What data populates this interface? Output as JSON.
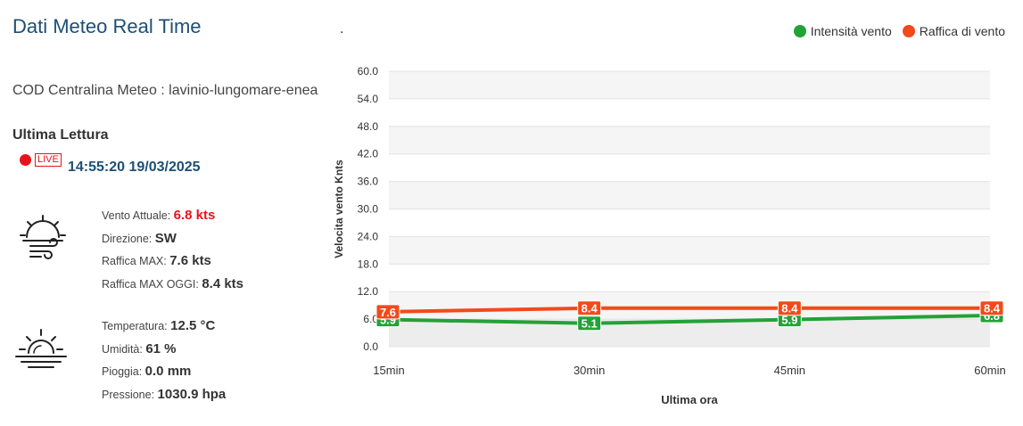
{
  "page": {
    "title": "Dati Meteo Real Time",
    "separator": "."
  },
  "station": {
    "label": "COD Centralina Meteo : lavinio-lungomare-enea",
    "last_reading_label": "Ultima Lettura",
    "live_badge": "LIVE",
    "timestamp": "14:55:20 19/03/2025"
  },
  "wind": {
    "icon": "wind-sun-icon",
    "rows": [
      {
        "label": "Vento Attuale:",
        "value": "6.8 kts",
        "highlight": true
      },
      {
        "label": "Direzione:",
        "value": "SW",
        "highlight": false
      },
      {
        "label": "Raffica MAX:",
        "value": "7.6 kts",
        "highlight": false
      },
      {
        "label": "Raffica MAX OGGI:",
        "value": "8.4 kts",
        "highlight": false
      }
    ]
  },
  "weather": {
    "icon": "sunset-icon",
    "rows": [
      {
        "label": "Temperatura:",
        "value": "12.5 °C"
      },
      {
        "label": "Umidità:",
        "value": "61 %"
      },
      {
        "label": "Pioggia:",
        "value": "0.0 mm"
      },
      {
        "label": "Pressione:",
        "value": "1030.9 hpa"
      }
    ]
  },
  "colors": {
    "title": "#1d4f73",
    "live": "#e8131a",
    "series_wind": "#23a237",
    "series_gust": "#f24a1c"
  },
  "chart_data": {
    "type": "line",
    "xlabel": "Ultima ora",
    "ylabel": "Velocita vento Knts",
    "categories": [
      "15min",
      "30min",
      "45min",
      "60min"
    ],
    "ylim": [
      0,
      60
    ],
    "yticks": [
      "0.0",
      "6.0",
      "12.0",
      "18.0",
      "24.0",
      "30.0",
      "36.0",
      "42.0",
      "48.0",
      "54.0",
      "60.0"
    ],
    "grid": true,
    "legend_position": "top-right",
    "series": [
      {
        "name": "Intensità vento",
        "values": [
          5.9,
          5.1,
          5.9,
          6.8
        ],
        "labels": [
          "5.9",
          "5.1",
          "5.9",
          "6.8"
        ],
        "color": "#23a237"
      },
      {
        "name": "Raffica di vento",
        "values": [
          7.6,
          8.4,
          8.4,
          8.4
        ],
        "labels": [
          "7.6",
          "8.4",
          "8.4",
          "8.4"
        ],
        "color": "#f24a1c"
      }
    ]
  }
}
